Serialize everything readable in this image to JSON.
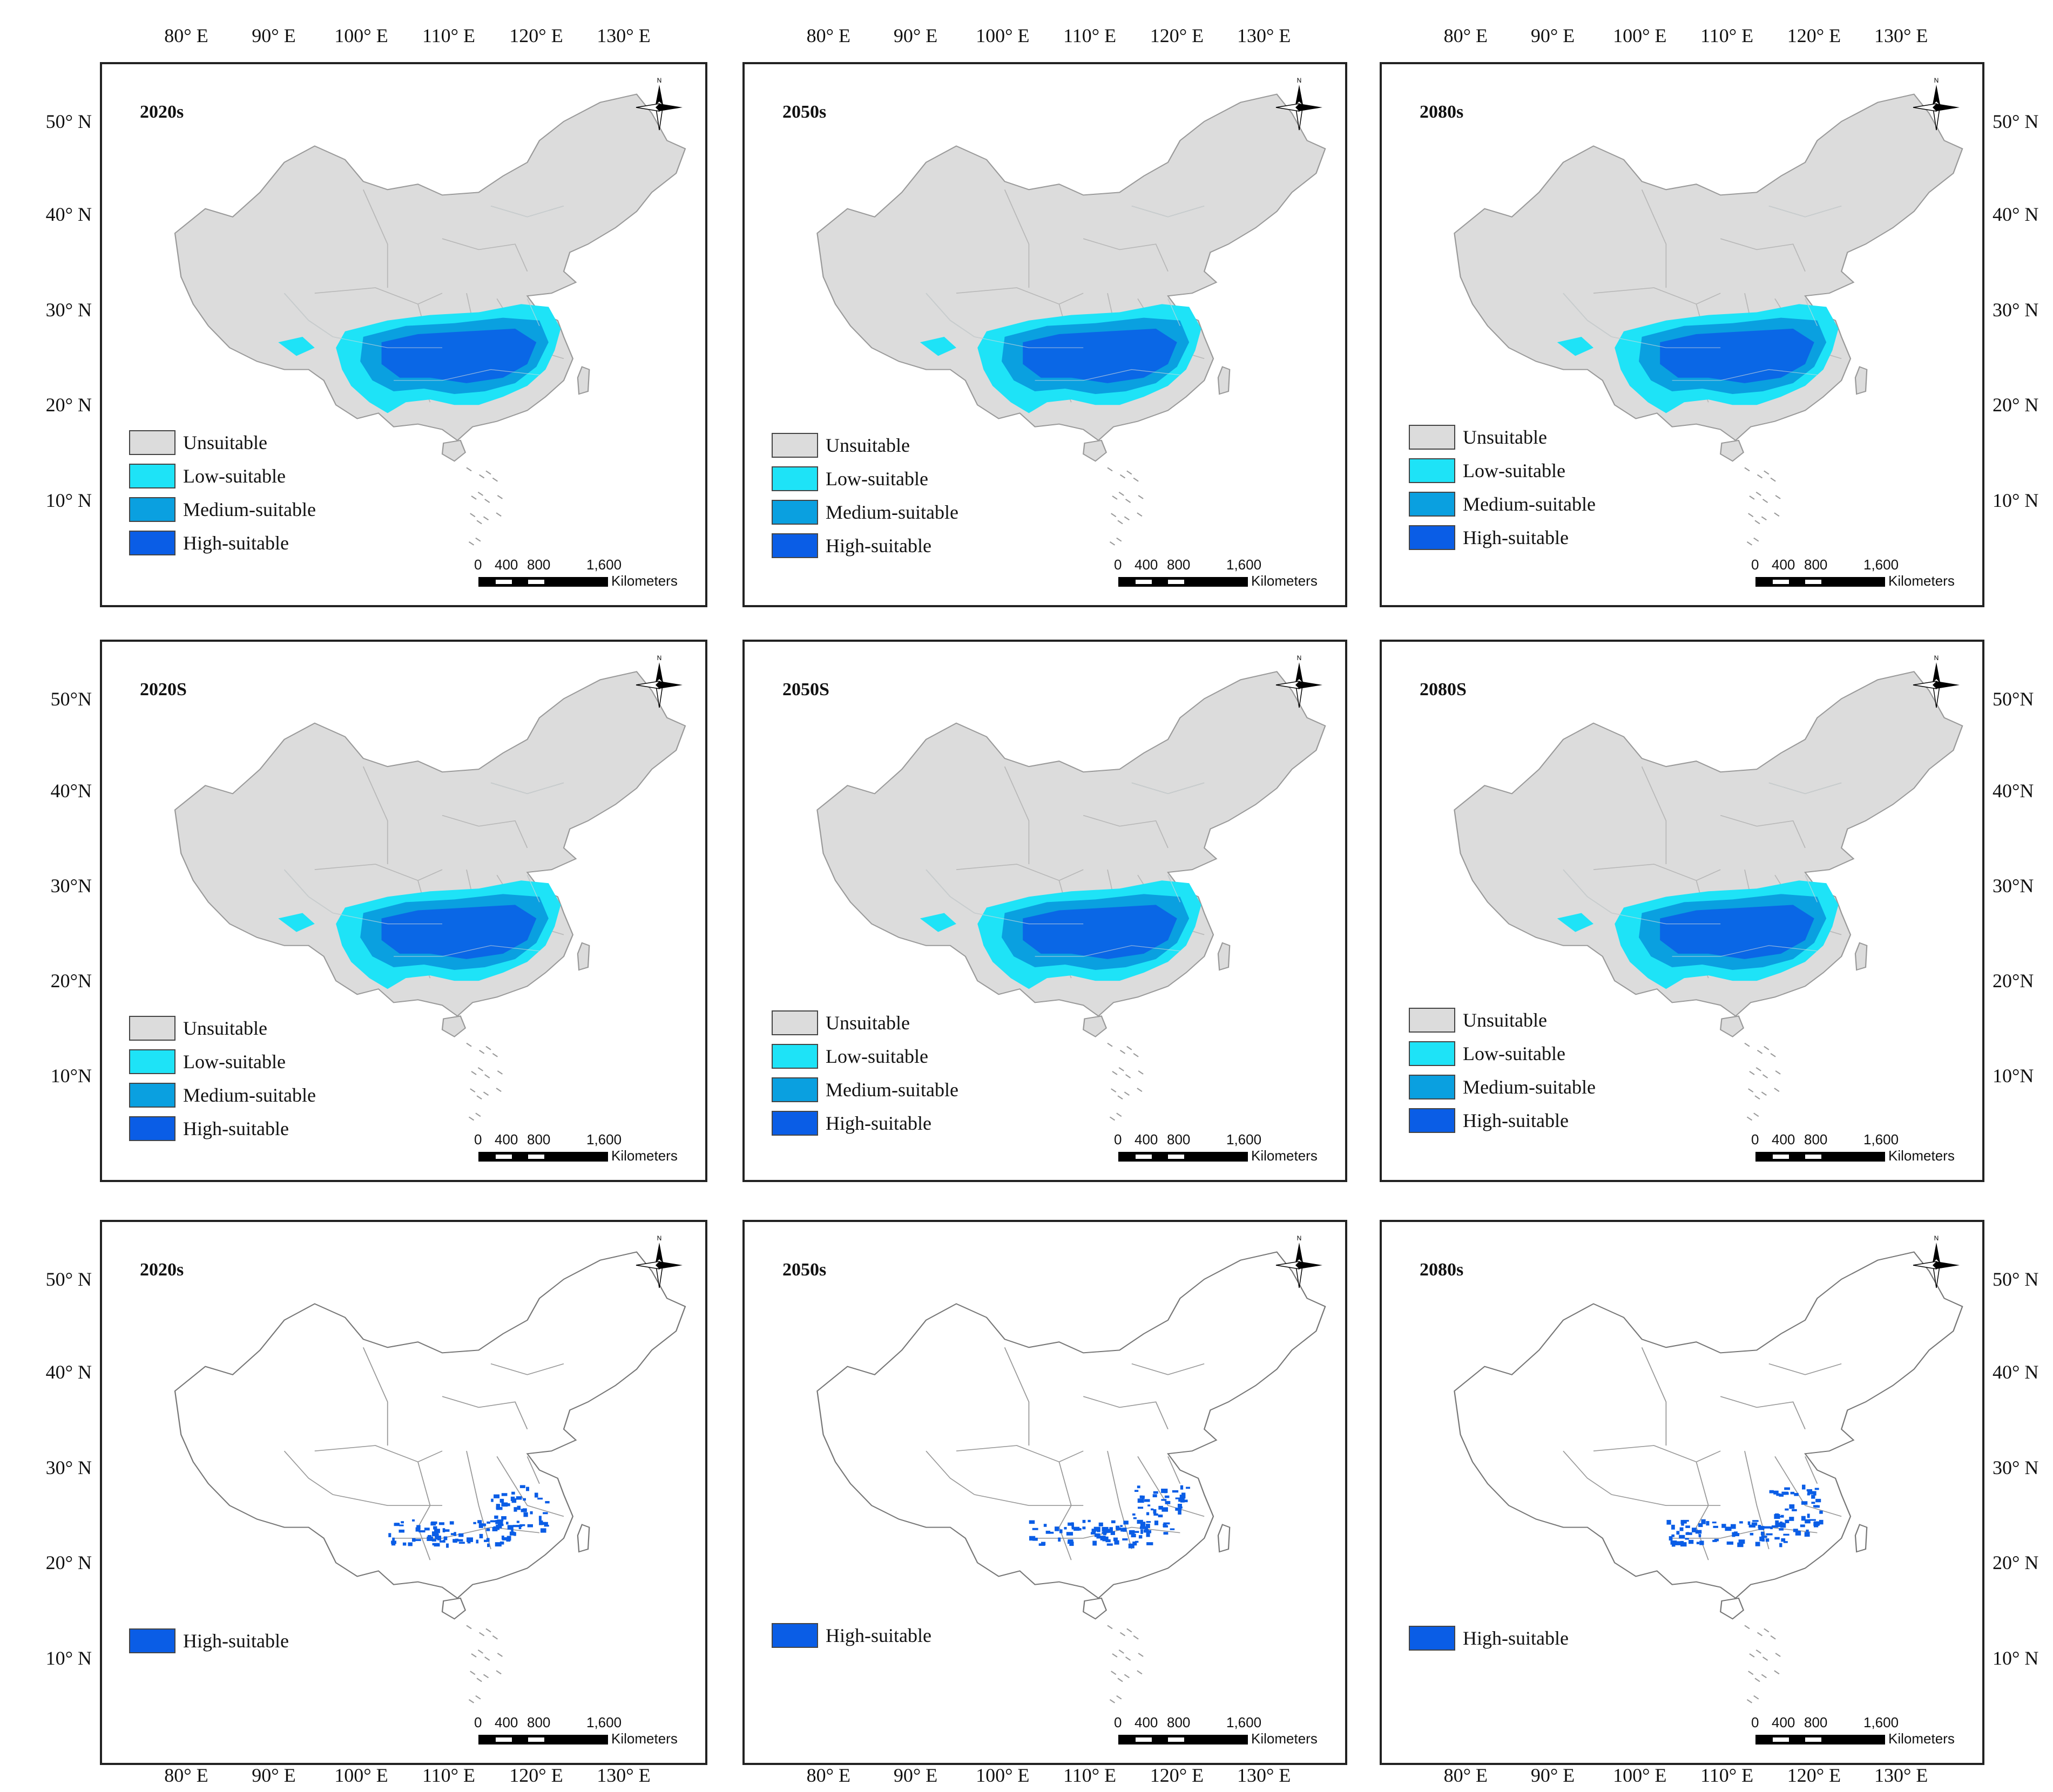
{
  "legend_colors": {
    "unsuitable": "#dcdcdc",
    "low": "#1ee3f7",
    "medium": "#0aa0e0",
    "high": "#0a5de6"
  },
  "top_lon_labels": [
    "80° E",
    "90° E",
    "100° E",
    "110° E",
    "120° E",
    "130° E"
  ],
  "bottom_lon_labels_left": [
    "80° E",
    "90° E",
    "100° E",
    "110° E",
    "120° E",
    "130° E"
  ],
  "bottom_lon_labels_mid": [
    "80° E",
    "90° E",
    "100° E",
    "110° E",
    "120° E",
    "130° E"
  ],
  "bottom_lon_labels_right": [
    "80° E",
    "90° E",
    "100° E",
    "110° E",
    "120° E",
    "130° E"
  ],
  "lat_labels_row1": [
    "50° N",
    "40° N",
    "30° N",
    "20° N",
    "10° N"
  ],
  "lat_labels_row2": [
    "50°N",
    "40°N",
    "30°N",
    "20°N",
    "10°N"
  ],
  "lat_labels_row3": [
    "50° N",
    "40° N",
    "30° N",
    "20° N",
    "10° N"
  ],
  "scalebar": {
    "n0": "0",
    "n1": "400",
    "n2": "800",
    "n3": "1,600",
    "unit": "Kilometers"
  },
  "north_label": "N",
  "panels": [
    {
      "title": "2020s",
      "legend": [
        "Unsuitable",
        "Low-suitable",
        "Medium-suitable",
        "High-suitable"
      ]
    },
    {
      "title": "2050s",
      "legend": [
        "Unsuitable",
        "Low-suitable",
        "Medium-suitable",
        "High-suitable"
      ]
    },
    {
      "title": "2080s",
      "legend": [
        "Unsuitable",
        "Low-suitable",
        "Medium-suitable",
        "High-suitable"
      ]
    },
    {
      "title": "2020S",
      "legend": [
        "Unsuitable",
        "Low-suitable",
        "Medium-suitable",
        "High-suitable"
      ]
    },
    {
      "title": "2050S",
      "legend": [
        "Unsuitable",
        "Low-suitable",
        "Medium-suitable",
        "High-suitable"
      ]
    },
    {
      "title": "2080S",
      "legend": [
        "Unsuitable",
        "Low-suitable",
        "Medium-suitable",
        "High-suitable"
      ]
    },
    {
      "title": "2020s",
      "legend": [
        "High-suitable"
      ]
    },
    {
      "title": "2050s",
      "legend": [
        "High-suitable"
      ]
    },
    {
      "title": "2080s",
      "legend": [
        "High-suitable"
      ]
    }
  ]
}
